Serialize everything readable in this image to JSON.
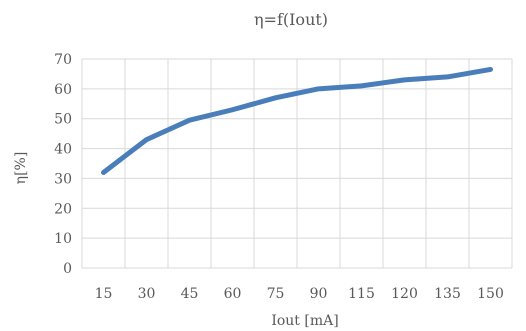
{
  "chart_data": {
    "type": "line",
    "title": "η=f(Iout)",
    "xlabel": "Iout [mA]",
    "ylabel": "η[%]",
    "categories": [
      "15",
      "30",
      "45",
      "60",
      "75",
      "90",
      "115",
      "120",
      "135",
      "150"
    ],
    "series": [
      {
        "values": [
          32,
          43,
          49.5,
          53,
          57,
          60,
          61,
          63,
          64,
          66.5
        ]
      }
    ],
    "ylim": [
      0,
      70
    ],
    "yticks": [
      0,
      10,
      20,
      30,
      40,
      50,
      60,
      70
    ],
    "grid": true,
    "legend": "none",
    "colors": {
      "series": "#4a7ebb",
      "grid": "#d9d9d9",
      "text": "#595959"
    }
  }
}
